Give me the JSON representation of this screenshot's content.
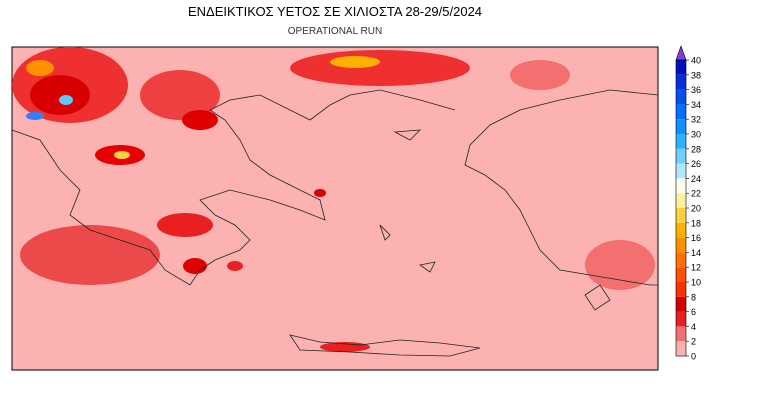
{
  "header": {
    "title": "ΕΝΔΕΙΚΤΙΚΟΣ ΥΕΤΟΣ ΣΕ ΧΙΛΙΟΣΤΑ 28-29/5/2024",
    "subtitle": "OPERATIONAL RUN"
  },
  "colorbar": {
    "ticks": [
      0,
      2,
      4,
      6,
      8,
      10,
      12,
      14,
      16,
      18,
      20,
      22,
      24,
      26,
      28,
      30,
      32,
      34,
      36,
      38,
      40
    ],
    "colors": [
      "#fbb0b0",
      "#f47070",
      "#e82020",
      "#d40000",
      "#ff3000",
      "#ff5000",
      "#ff7000",
      "#ff9000",
      "#ffb000",
      "#ffd040",
      "#fff0a0",
      "#fffff0",
      "#b0e8ff",
      "#70d0ff",
      "#30b0ff",
      "#1090ff",
      "#0070ff",
      "#0050f0",
      "#0030e0",
      "#0010c0"
    ],
    "over_color": "#7b3fe4"
  }
}
